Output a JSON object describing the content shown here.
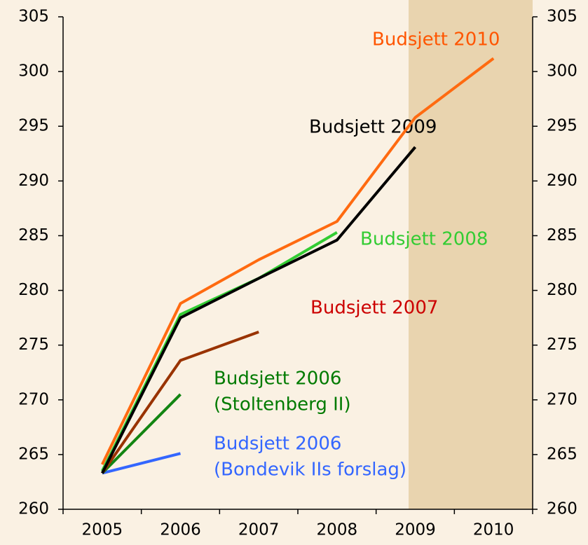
{
  "chart_data": {
    "type": "line",
    "categories": [
      "2005",
      "2006",
      "2007",
      "2008",
      "2009",
      "2010"
    ],
    "ylim": [
      260,
      305
    ],
    "yticks": [
      260,
      265,
      270,
      275,
      280,
      285,
      290,
      295,
      300,
      305
    ],
    "series": [
      {
        "name": [
          "Budsjett 2006",
          "(Bondevik IIs forslag)"
        ],
        "color": "#3366ff",
        "label_color": "#3366ff",
        "values": [
          263.3,
          265.1,
          null,
          null,
          null,
          null
        ]
      },
      {
        "name": [
          "Budsjett 2006",
          "(Stoltenberg II)"
        ],
        "color": "#128512",
        "label_color": "#007a00",
        "values": [
          263.3,
          270.5,
          null,
          null,
          null,
          null
        ]
      },
      {
        "name": [
          "Budsjett 2007"
        ],
        "color": "#993300",
        "label_color": "#cc0000",
        "values": [
          263.3,
          273.6,
          276.2,
          null,
          null,
          null
        ]
      },
      {
        "name": [
          "Budsjett 2008"
        ],
        "color": "#33cc33",
        "label_color": "#33cc33",
        "values": [
          263.5,
          277.8,
          281.1,
          285.3,
          null,
          null
        ]
      },
      {
        "name": [
          "Budsjett 2009"
        ],
        "color": "#000000",
        "label_color": "#000000",
        "values": [
          263.3,
          277.5,
          281.1,
          284.6,
          293.1,
          null
        ]
      },
      {
        "name": [
          "Budsjett 2010"
        ],
        "color": "#ff6a10",
        "label_color": "#ff5500",
        "values": [
          264.1,
          278.8,
          282.8,
          286.3,
          295.8,
          301.2
        ]
      }
    ]
  }
}
